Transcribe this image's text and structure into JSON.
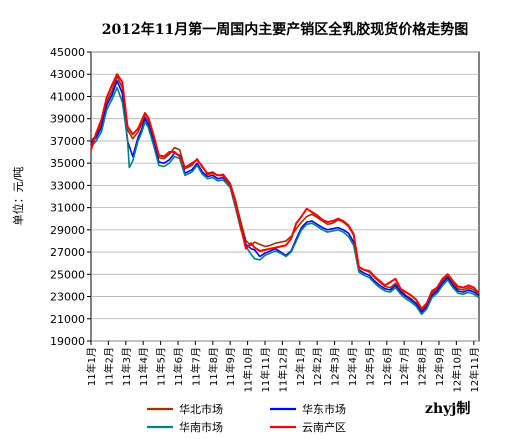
{
  "chart_data": {
    "type": "line",
    "title": "2012年11月第一周国内主要产销区全乳胶现货价格走势图",
    "ylabel": "单位：元/吨",
    "xlabel": "",
    "ylim": [
      19000,
      45000
    ],
    "yticks": [
      19000,
      21000,
      23000,
      25000,
      27000,
      29000,
      31000,
      33000,
      35000,
      37000,
      39000,
      41000,
      43000,
      45000
    ],
    "x_tick_labels": [
      "11年1月",
      "11年2月",
      "11年3月",
      "11年4月",
      "11年5月",
      "11年6月",
      "11年7月",
      "11年8月",
      "11年9月",
      "11年10月",
      "11年11月",
      "11年12月",
      "12年1月",
      "12年2月",
      "12年3月",
      "12年4月",
      "12年5月",
      "12年6月",
      "12年7月",
      "12年8月",
      "12年9月",
      "12年10月",
      "12年11月"
    ],
    "x_range": [
      0,
      22.3
    ],
    "grid": true,
    "legend_position": "bottom",
    "watermark": "zhyj制",
    "series": [
      {
        "name": "华北市场",
        "color": "#993300",
        "x": [
          0,
          0.3,
          0.6,
          0.9,
          1.2,
          1.5,
          1.8,
          2.1,
          2.4,
          2.7,
          2.9,
          3.1,
          3.3,
          3.6,
          3.9,
          4.2,
          4.5,
          4.8,
          5.1,
          5.4,
          5.8,
          6.1,
          6.4,
          6.7,
          7.0,
          7.3,
          7.6,
          8.0,
          8.3,
          8.6,
          8.9,
          9.2,
          9.4,
          9.7,
          10.0,
          10.3,
          10.6,
          10.9,
          11.2,
          11.5,
          11.8,
          12.1,
          12.4,
          12.7,
          13.0,
          13.3,
          13.6,
          13.9,
          14.2,
          14.5,
          14.8,
          15.1,
          15.4,
          15.7,
          16.0,
          16.3,
          16.6,
          16.9,
          17.2,
          17.5,
          17.8,
          18.1,
          18.4,
          18.7,
          19.0,
          19.3,
          19.6,
          19.9,
          20.2,
          20.5,
          20.8,
          21.1,
          21.4,
          21.7,
          22.0,
          22.3
        ],
        "values": [
          37000,
          37500,
          38500,
          40500,
          41500,
          42800,
          41800,
          38000,
          37200,
          37800,
          38500,
          39200,
          38800,
          37200,
          35500,
          35400,
          35800,
          36400,
          36200,
          34500,
          34800,
          35400,
          34600,
          34100,
          34200,
          33900,
          34000,
          33200,
          31700,
          29800,
          28000,
          27600,
          27900,
          27700,
          27500,
          27600,
          27800,
          27900,
          28000,
          28400,
          29100,
          29700,
          30200,
          30400,
          30100,
          29800,
          29500,
          29600,
          29900,
          29700,
          29300,
          28500,
          25700,
          25400,
          25200,
          24700,
          24300,
          23900,
          23800,
          24200,
          23600,
          23100,
          22800,
          22400,
          21700,
          22200,
          23300,
          23700,
          24400,
          24900,
          24200,
          23700,
          23600,
          23800,
          23600,
          23200
        ]
      },
      {
        "name": "华东市场",
        "color": "#0000ff",
        "x": [
          0,
          0.3,
          0.6,
          0.9,
          1.2,
          1.5,
          1.8,
          2.1,
          2.4,
          2.7,
          2.9,
          3.1,
          3.3,
          3.6,
          3.9,
          4.2,
          4.5,
          4.8,
          5.1,
          5.4,
          5.8,
          6.1,
          6.4,
          6.7,
          7.0,
          7.3,
          7.6,
          8.0,
          8.3,
          8.6,
          8.9,
          9.2,
          9.4,
          9.7,
          10.0,
          10.3,
          10.6,
          10.9,
          11.2,
          11.5,
          11.8,
          12.1,
          12.4,
          12.7,
          13.0,
          13.3,
          13.6,
          13.9,
          14.2,
          14.5,
          14.8,
          15.1,
          15.4,
          15.7,
          16.0,
          16.3,
          16.6,
          16.9,
          17.2,
          17.5,
          17.8,
          18.1,
          18.4,
          18.7,
          19.0,
          19.3,
          19.6,
          19.9,
          20.2,
          20.5,
          20.8,
          21.1,
          21.4,
          21.7,
          22.0,
          22.3
        ],
        "values": [
          36800,
          37300,
          38200,
          40200,
          41100,
          42400,
          41300,
          37000,
          35600,
          37300,
          38000,
          39000,
          38500,
          36900,
          35100,
          35000,
          35300,
          35900,
          35700,
          34100,
          34400,
          35000,
          34200,
          33800,
          33900,
          33600,
          33700,
          33000,
          31300,
          29400,
          27700,
          27300,
          27200,
          26600,
          26900,
          27100,
          27300,
          27000,
          26700,
          27100,
          28200,
          29200,
          29700,
          29800,
          29500,
          29200,
          29000,
          29100,
          29200,
          29000,
          28700,
          27900,
          25400,
          25100,
          24900,
          24400,
          24000,
          23700,
          23600,
          24000,
          23400,
          23000,
          22700,
          22300,
          21600,
          22100,
          23100,
          23500,
          24200,
          24700,
          24000,
          23500,
          23400,
          23600,
          23400,
          23100
        ]
      },
      {
        "name": "华南市场",
        "color": "#008080",
        "x": [
          0,
          0.3,
          0.6,
          0.9,
          1.2,
          1.5,
          1.8,
          2.1,
          2.2,
          2.4,
          2.7,
          2.9,
          3.1,
          3.3,
          3.6,
          3.9,
          4.2,
          4.5,
          4.8,
          5.1,
          5.4,
          5.8,
          6.1,
          6.4,
          6.7,
          7.0,
          7.3,
          7.6,
          8.0,
          8.3,
          8.6,
          8.9,
          9.2,
          9.4,
          9.7,
          10.0,
          10.3,
          10.6,
          10.9,
          11.2,
          11.5,
          11.8,
          12.1,
          12.4,
          12.7,
          13.0,
          13.3,
          13.6,
          13.9,
          14.2,
          14.5,
          14.8,
          15.1,
          15.4,
          15.7,
          16.0,
          16.3,
          16.6,
          16.9,
          17.2,
          17.5,
          17.8,
          18.1,
          18.4,
          18.7,
          19.0,
          19.3,
          19.6,
          19.9,
          20.2,
          20.5,
          20.8,
          21.1,
          21.4,
          21.7,
          22.0,
          22.3
        ],
        "values": [
          36500,
          37000,
          37800,
          39800,
          40700,
          41800,
          40500,
          37200,
          34600,
          35200,
          37000,
          37700,
          38700,
          38200,
          36600,
          34800,
          34700,
          35000,
          35600,
          35400,
          33900,
          34200,
          34800,
          34000,
          33600,
          33700,
          33400,
          33500,
          32800,
          31000,
          29100,
          27500,
          26800,
          26400,
          26300,
          26700,
          26900,
          27100,
          26900,
          26600,
          27000,
          28000,
          29000,
          29500,
          29600,
          29300,
          29000,
          28800,
          28900,
          29000,
          28800,
          28400,
          27600,
          25200,
          24900,
          24700,
          24200,
          23800,
          23500,
          23400,
          23800,
          23200,
          22800,
          22500,
          22100,
          21400,
          21900,
          22900,
          23300,
          24000,
          24500,
          23800,
          23300,
          23200,
          23400,
          23200,
          22900
        ]
      },
      {
        "name": "云南产区",
        "color": "#ff0000",
        "x": [
          0,
          0.3,
          0.6,
          0.9,
          1.2,
          1.5,
          1.8,
          2.1,
          2.4,
          2.7,
          2.9,
          3.1,
          3.3,
          3.6,
          3.9,
          4.2,
          4.5,
          4.8,
          5.1,
          5.4,
          5.8,
          6.1,
          6.4,
          6.7,
          7.0,
          7.3,
          7.6,
          8.0,
          8.3,
          8.6,
          8.9,
          9.2,
          9.4,
          9.7,
          10.0,
          10.3,
          10.6,
          10.9,
          11.2,
          11.5,
          11.8,
          12.1,
          12.4,
          12.7,
          13.0,
          13.3,
          13.6,
          13.9,
          14.2,
          14.5,
          14.8,
          15.1,
          15.4,
          15.7,
          16.0,
          16.3,
          16.6,
          16.9,
          17.2,
          17.5,
          17.8,
          18.1,
          18.4,
          18.7,
          19.0,
          19.3,
          19.6,
          19.9,
          20.2,
          20.5,
          20.8,
          21.1,
          21.4,
          21.7,
          22.0,
          22.3
        ],
        "values": [
          36200,
          37700,
          38900,
          40900,
          42000,
          43000,
          42300,
          38300,
          37600,
          38100,
          38800,
          39500,
          39100,
          37500,
          35700,
          35600,
          36000,
          36000,
          35600,
          34600,
          35000,
          35300,
          34700,
          34000,
          34100,
          33900,
          33900,
          33000,
          31500,
          29400,
          27300,
          27800,
          27400,
          27100,
          27200,
          27300,
          27400,
          27500,
          27600,
          28200,
          29600,
          30200,
          30900,
          30600,
          30300,
          29900,
          29700,
          29800,
          30000,
          29800,
          29400,
          28600,
          25600,
          25400,
          25300,
          24800,
          24400,
          24000,
          24300,
          24600,
          23700,
          23400,
          23100,
          22700,
          21900,
          22400,
          23500,
          23800,
          24600,
          25000,
          24400,
          23900,
          23800,
          24000,
          23800,
          23300
        ]
      }
    ]
  }
}
